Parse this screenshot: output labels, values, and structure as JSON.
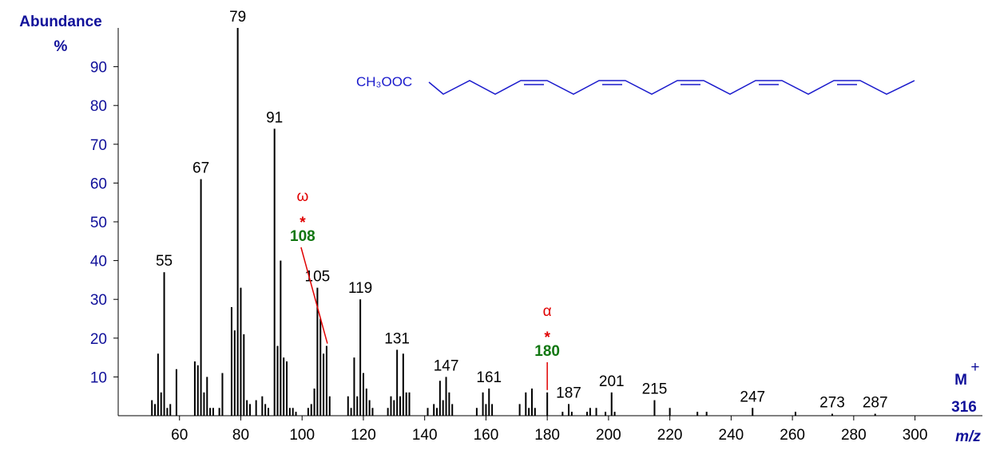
{
  "chart_data": {
    "type": "bar",
    "y_label": "Abundance",
    "y_unit": "%",
    "x_label": "m/z",
    "x": [
      51,
      52,
      53,
      54,
      55,
      56,
      57,
      59,
      65,
      66,
      67,
      68,
      69,
      70,
      71,
      73,
      74,
      77,
      78,
      79,
      80,
      81,
      82,
      83,
      85,
      87,
      88,
      89,
      91,
      92,
      93,
      94,
      95,
      96,
      97,
      98,
      102,
      103,
      104,
      105,
      106,
      107,
      108,
      109,
      115,
      116,
      117,
      118,
      119,
      120,
      121,
      122,
      123,
      128,
      129,
      130,
      131,
      132,
      133,
      134,
      135,
      141,
      143,
      144,
      145,
      146,
      147,
      148,
      149,
      157,
      159,
      160,
      161,
      162,
      171,
      173,
      174,
      175,
      176,
      180,
      185,
      187,
      188,
      193,
      194,
      196,
      199,
      201,
      202,
      215,
      220,
      229,
      232,
      247,
      261,
      273,
      287
    ],
    "values": [
      4,
      3,
      16,
      6,
      37,
      2,
      3,
      12,
      14,
      13,
      61,
      6,
      10,
      2,
      2,
      2,
      11,
      28,
      22,
      100,
      33,
      21,
      4,
      3,
      4,
      5,
      3,
      2,
      74,
      18,
      40,
      15,
      14,
      2,
      2,
      1,
      2,
      3,
      7,
      33,
      25,
      16,
      18,
      5,
      5,
      2,
      15,
      5,
      30,
      11,
      7,
      4,
      2,
      2,
      5,
      4,
      17,
      5,
      16,
      6,
      6,
      2,
      3,
      2,
      9,
      4,
      10,
      6,
      3,
      2,
      6,
      3,
      7,
      3,
      3,
      6,
      2,
      7,
      2,
      6,
      1,
      3,
      1,
      1,
      2,
      2,
      1,
      6,
      1,
      4,
      2,
      1,
      1,
      2,
      1,
      0.5,
      0.5
    ],
    "color": "#000000",
    "peak_labels": [
      55,
      67,
      79,
      91,
      105,
      119,
      131,
      147,
      161,
      187,
      201,
      215,
      247,
      273,
      287
    ],
    "annotations": [
      {
        "symbol": "ω",
        "mark": "*",
        "mz": 108
      },
      {
        "symbol": "α",
        "mark": "*",
        "mz": 180
      }
    ],
    "molecular_ion": {
      "label": "M",
      "superscript": "+",
      "mz": 316
    },
    "structure_label": "CH₃OOC",
    "xlim": [
      40,
      322
    ],
    "ylim": [
      0,
      100
    ],
    "xticks": [
      60,
      80,
      100,
      120,
      140,
      160,
      180,
      200,
      220,
      240,
      260,
      280,
      300
    ],
    "yticks": [
      10,
      20,
      30,
      40,
      50,
      60,
      70,
      80,
      90
    ]
  }
}
